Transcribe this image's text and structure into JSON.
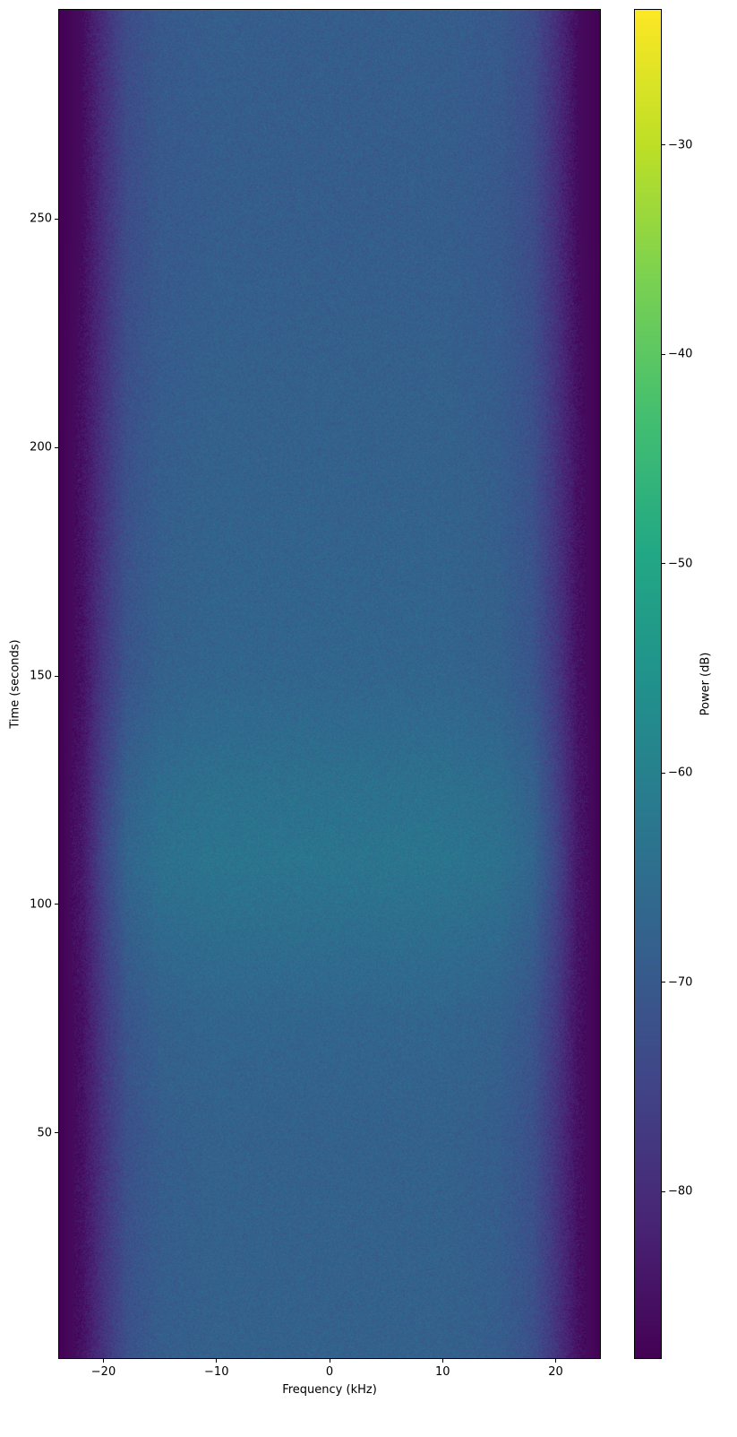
{
  "chart_data": {
    "type": "heatmap",
    "title": "",
    "xlabel": "Frequency (kHz)",
    "ylabel": "Time (seconds)",
    "colorbar_label": "Power (dB)",
    "colormap": "viridis",
    "xlim": [
      -24,
      24
    ],
    "ylim": [
      0.5,
      296
    ],
    "clim": [
      -88,
      -23.5
    ],
    "xticks": [
      -20,
      -10,
      0,
      10,
      20
    ],
    "xtick_labels": [
      "−20",
      "−10",
      "0",
      "10",
      "20"
    ],
    "yticks": [
      50,
      100,
      150,
      200,
      250
    ],
    "ytick_labels": [
      "50",
      "100",
      "150",
      "200",
      "250"
    ],
    "cticks": [
      -30,
      -40,
      -50,
      -60,
      -70,
      -80
    ],
    "ctick_labels": [
      "−30",
      "−40",
      "−50",
      "−60",
      "−70",
      "−80"
    ],
    "grid": false,
    "frequencies": [
      -24,
      -22,
      -20,
      -18,
      -15,
      -10,
      0,
      10,
      15,
      18,
      20,
      22,
      24
    ],
    "times": [
      0,
      50,
      75,
      100,
      110,
      125,
      150,
      200,
      250,
      296
    ],
    "values": [
      [
        -88,
        -85,
        -78,
        -72,
        -69,
        -68,
        -68,
        -68,
        -69,
        -72,
        -78,
        -85,
        -88
      ],
      [
        -88,
        -85,
        -78,
        -72,
        -69,
        -68,
        -68,
        -68,
        -69,
        -72,
        -78,
        -85,
        -88
      ],
      [
        -88,
        -85,
        -77,
        -71,
        -68,
        -67,
        -67,
        -67,
        -68,
        -71,
        -77,
        -85,
        -88
      ],
      [
        -88,
        -84,
        -75,
        -68,
        -65,
        -64,
        -64,
        -64,
        -65,
        -68,
        -75,
        -84,
        -88
      ],
      [
        -88,
        -84,
        -74,
        -67,
        -64,
        -63,
        -63,
        -63,
        -64,
        -67,
        -74,
        -84,
        -88
      ],
      [
        -88,
        -84,
        -75,
        -68,
        -65,
        -64,
        -64,
        -64,
        -65,
        -68,
        -75,
        -84,
        -88
      ],
      [
        -88,
        -85,
        -77,
        -71,
        -68,
        -67,
        -67,
        -67,
        -68,
        -71,
        -77,
        -85,
        -88
      ],
      [
        -88,
        -85,
        -78,
        -72,
        -69,
        -68,
        -68,
        -68,
        -69,
        -72,
        -78,
        -85,
        -88
      ],
      [
        -88,
        -86,
        -79,
        -73,
        -70,
        -69,
        -69,
        -69,
        -70,
        -73,
        -79,
        -86,
        -88
      ],
      [
        -88,
        -86,
        -79,
        -73,
        -70,
        -69,
        -69,
        -69,
        -70,
        -73,
        -79,
        -86,
        -88
      ]
    ]
  }
}
